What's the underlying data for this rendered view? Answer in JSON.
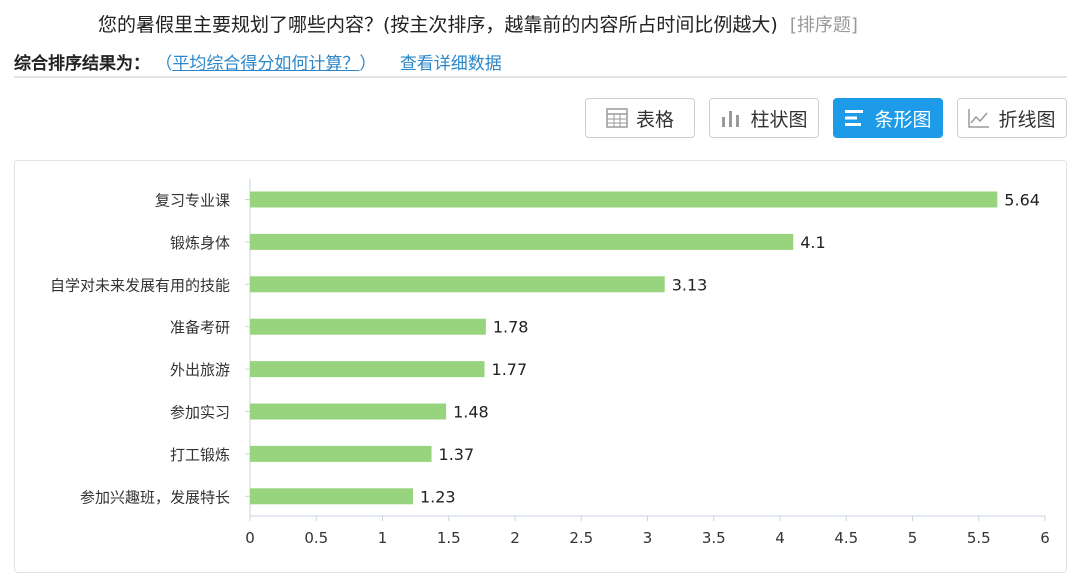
{
  "question": {
    "number": "",
    "title": "您的暑假里主要规划了哪些内容？(按主次排序，越靠前的内容所占时间比例越大)",
    "type": "[排序题]"
  },
  "result": {
    "label": "综合排序结果为：",
    "paren_open": "（",
    "avg_link": "平均综合得分如何计算？",
    "paren_close": "）",
    "detail_link": "查看详细数据"
  },
  "view_buttons": {
    "table": "表格",
    "column": "柱状图",
    "bar": "条形图",
    "line": "折线图",
    "active": "bar"
  },
  "icons": {
    "table": "table-icon",
    "column": "column-chart-icon",
    "bar": "bar-chart-icon",
    "line": "line-chart-icon"
  },
  "colors": {
    "bar": "#98d47e",
    "accent": "#1e9be8",
    "link": "#2b87c9"
  },
  "chart_data": {
    "type": "bar",
    "orientation": "horizontal",
    "categories": [
      "复习专业课",
      "锻炼身体",
      "自学对未来发展有用的技能",
      "准备考研",
      "外出旅游",
      "参加实习",
      "打工锻炼",
      "参加兴趣班，发展特长"
    ],
    "values": [
      5.64,
      4.1,
      3.13,
      1.78,
      1.77,
      1.48,
      1.37,
      1.23
    ],
    "value_labels": [
      "5.64",
      "4.1",
      "3.13",
      "1.78",
      "1.77",
      "1.48",
      "1.37",
      "1.23"
    ],
    "xlim": [
      0,
      6
    ],
    "xticks": [
      0,
      0.5,
      1,
      1.5,
      2,
      2.5,
      3,
      3.5,
      4,
      4.5,
      5,
      5.5,
      6
    ],
    "xtick_labels": [
      "0",
      "0.5",
      "1",
      "1.5",
      "2",
      "2.5",
      "3",
      "3.5",
      "4",
      "4.5",
      "5",
      "5.5",
      "6"
    ],
    "grid": false,
    "legend": "none"
  }
}
